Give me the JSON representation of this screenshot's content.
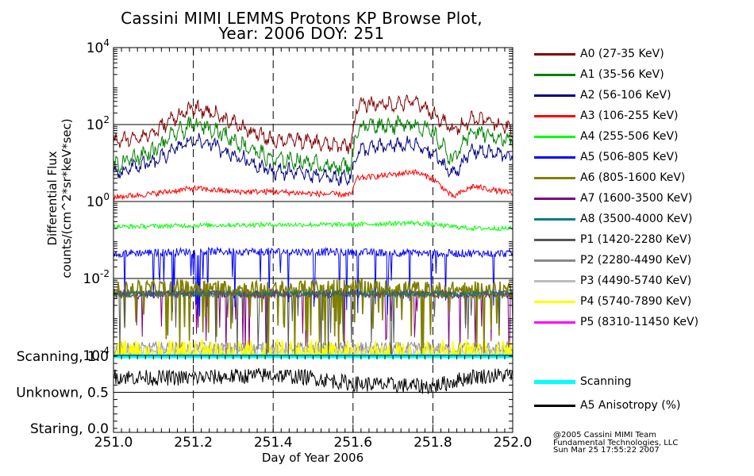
{
  "chart_data": {
    "type": "line",
    "title": {
      "line1": "Cassini MIMI LEMMS Protons KP Browse Plot,",
      "line2": "Year: 2006 DOY: 251"
    },
    "xlabel": "Day of Year 2006",
    "x_range": [
      251.0,
      252.0
    ],
    "x_ticks": [
      "251.0",
      "251.2",
      "251.4",
      "251.6",
      "251.8",
      "252.0"
    ],
    "x_tick_values": [
      251.0,
      251.2,
      251.4,
      251.6,
      251.8,
      252.0
    ],
    "flux_panel": {
      "ylabel_line1": "Differential Flux",
      "ylabel_line2": "counts/(cm^2*sr*keV*sec)",
      "y_scale": "log",
      "y_range": [
        0.0001,
        10000
      ],
      "y_ticks": [
        {
          "value": 10000,
          "base": "10",
          "exp": "4"
        },
        {
          "value": 100,
          "base": "10",
          "exp": "2"
        },
        {
          "value": 1,
          "base": "10",
          "exp": "0"
        },
        {
          "value": 0.01,
          "base": "10",
          "exp": "-2"
        },
        {
          "value": 0.0001,
          "base": "10",
          "exp": "-4"
        }
      ],
      "series": [
        {
          "name": "A0 (27-35 KeV)",
          "color": "#800000",
          "profile": [
            [
              251.0,
              35
            ],
            [
              251.05,
              45
            ],
            [
              251.1,
              60
            ],
            [
              251.15,
              150
            ],
            [
              251.2,
              260
            ],
            [
              251.25,
              200
            ],
            [
              251.3,
              110
            ],
            [
              251.35,
              60
            ],
            [
              251.4,
              40
            ],
            [
              251.45,
              40
            ],
            [
              251.5,
              35
            ],
            [
              251.55,
              28
            ],
            [
              251.595,
              30
            ],
            [
              251.61,
              320
            ],
            [
              251.65,
              350
            ],
            [
              251.7,
              330
            ],
            [
              251.75,
              400
            ],
            [
              251.8,
              200
            ],
            [
              251.85,
              70
            ],
            [
              251.9,
              150
            ],
            [
              251.95,
              120
            ],
            [
              252.0,
              70
            ]
          ]
        },
        {
          "name": "A1 (35-56 KeV)",
          "color": "#008000",
          "profile": [
            [
              251.0,
              8
            ],
            [
              251.05,
              14
            ],
            [
              251.1,
              20
            ],
            [
              251.15,
              55
            ],
            [
              251.2,
              100
            ],
            [
              251.25,
              80
            ],
            [
              251.3,
              40
            ],
            [
              251.35,
              22
            ],
            [
              251.4,
              12
            ],
            [
              251.45,
              12
            ],
            [
              251.5,
              10
            ],
            [
              251.55,
              8
            ],
            [
              251.595,
              9
            ],
            [
              251.61,
              80
            ],
            [
              251.65,
              100
            ],
            [
              251.7,
              95
            ],
            [
              251.75,
              110
            ],
            [
              251.8,
              60
            ],
            [
              251.85,
              12
            ],
            [
              251.9,
              70
            ],
            [
              251.95,
              50
            ],
            [
              252.0,
              35
            ]
          ]
        },
        {
          "name": "A2 (56-106 KeV)",
          "color": "#000080",
          "profile": [
            [
              251.0,
              5
            ],
            [
              251.05,
              8
            ],
            [
              251.1,
              10
            ],
            [
              251.15,
              22
            ],
            [
              251.2,
              40
            ],
            [
              251.25,
              30
            ],
            [
              251.3,
              16
            ],
            [
              251.35,
              10
            ],
            [
              251.4,
              6
            ],
            [
              251.45,
              6
            ],
            [
              251.5,
              5
            ],
            [
              251.55,
              4
            ],
            [
              251.595,
              4.5
            ],
            [
              251.61,
              20
            ],
            [
              251.65,
              25
            ],
            [
              251.7,
              28
            ],
            [
              251.75,
              30
            ],
            [
              251.8,
              18
            ],
            [
              251.85,
              5
            ],
            [
              251.9,
              22
            ],
            [
              251.95,
              18
            ],
            [
              252.0,
              15
            ]
          ]
        },
        {
          "name": "A3 (106-255 KeV)",
          "color": "#ff0000",
          "profile": [
            [
              251.0,
              1.3
            ],
            [
              251.1,
              1.6
            ],
            [
              251.2,
              2.2
            ],
            [
              251.3,
              1.8
            ],
            [
              251.4,
              1.8
            ],
            [
              251.5,
              1.6
            ],
            [
              251.595,
              1.5
            ],
            [
              251.61,
              4
            ],
            [
              251.7,
              5
            ],
            [
              251.75,
              6
            ],
            [
              251.8,
              4
            ],
            [
              251.85,
              1.3
            ],
            [
              251.9,
              2.5
            ],
            [
              252.0,
              1.6
            ]
          ]
        },
        {
          "name": "A4 (255-506 KeV)",
          "color": "#00ff00",
          "profile": [
            [
              251.0,
              0.22
            ],
            [
              251.2,
              0.24
            ],
            [
              251.4,
              0.25
            ],
            [
              251.6,
              0.25
            ],
            [
              251.75,
              0.28
            ],
            [
              251.9,
              0.2
            ],
            [
              252.0,
              0.2
            ]
          ]
        },
        {
          "name": "A5 (506-805 KeV)",
          "color": "#0000ff",
          "profile": [
            [
              251.0,
              0.045
            ],
            [
              251.2,
              0.05
            ],
            [
              251.4,
              0.05
            ],
            [
              251.6,
              0.048
            ],
            [
              251.8,
              0.045
            ],
            [
              252.0,
              0.045
            ]
          ]
        },
        {
          "name": "A6 (805-1600 KeV)",
          "color": "#808000",
          "profile": [
            [
              251.0,
              0.005
            ],
            [
              251.2,
              0.006
            ],
            [
              251.4,
              0.005
            ],
            [
              251.6,
              0.006
            ],
            [
              251.8,
              0.005
            ],
            [
              252.0,
              0.005
            ]
          ]
        },
        {
          "name": "A7 (1600-3500 KeV)",
          "color": "#800080",
          "profile": [
            [
              251.0,
              0.004
            ],
            [
              251.5,
              0.004
            ],
            [
              252.0,
              0.004
            ]
          ]
        },
        {
          "name": "A8 (3500-4000 KeV)",
          "color": "#008080",
          "profile": [
            [
              251.0,
              0.004
            ],
            [
              251.5,
              0.004
            ],
            [
              252.0,
              0.004
            ]
          ]
        },
        {
          "name": "P1 (1420-2280 KeV)",
          "color": "#555555",
          "profile": [
            [
              251.0,
              0.004
            ],
            [
              251.5,
              0.004
            ],
            [
              252.0,
              0.004
            ]
          ]
        },
        {
          "name": "P2 (2280-4490 KeV)",
          "color": "#888888",
          "profile": [
            [
              251.0,
              0.00015
            ],
            [
              251.5,
              0.00015
            ],
            [
              252.0,
              0.00015
            ]
          ]
        },
        {
          "name": "P3 (4490-5740 KeV)",
          "color": "#bbbbbb",
          "profile": [
            [
              251.0,
              0.00013
            ],
            [
              251.5,
              0.00013
            ],
            [
              252.0,
              0.00013
            ]
          ]
        },
        {
          "name": "P4 (5740-7890 KeV)",
          "color": "#ffff00",
          "profile": [
            [
              251.0,
              0.00015
            ],
            [
              251.5,
              0.00015
            ],
            [
              252.0,
              0.00015
            ]
          ]
        },
        {
          "name": "P5 (8310-11450 KeV)",
          "color": "#ff00ff",
          "profile": []
        }
      ]
    },
    "status_panel": {
      "y_range": [
        0.0,
        1.0
      ],
      "y_ticks": [
        {
          "value": 1.0,
          "label": "Scanning, 1.0"
        },
        {
          "value": 0.5,
          "label": "Unknown, 0.5"
        },
        {
          "value": 0.0,
          "label": "Staring, 0.0"
        }
      ],
      "series": [
        {
          "name": "Scanning",
          "color": "#00ffff",
          "profile": [
            [
              251.0,
              1.0
            ],
            [
              252.0,
              1.0
            ]
          ]
        },
        {
          "name": "A5 Anisotropy (%)",
          "color": "#000000",
          "profile": [
            [
              251.0,
              0.72
            ],
            [
              251.1,
              0.7
            ],
            [
              251.2,
              0.7
            ],
            [
              251.3,
              0.72
            ],
            [
              251.4,
              0.74
            ],
            [
              251.5,
              0.7
            ],
            [
              251.6,
              0.62
            ],
            [
              251.7,
              0.6
            ],
            [
              251.8,
              0.58
            ],
            [
              251.9,
              0.72
            ],
            [
              252.0,
              0.74
            ]
          ]
        }
      ]
    }
  },
  "credits": {
    "line1": "@2005 Cassini MIMI Team",
    "line2": "Fundamental Technologies, LLC",
    "line3": "Sun Mar 25 17:55:22 2007"
  }
}
